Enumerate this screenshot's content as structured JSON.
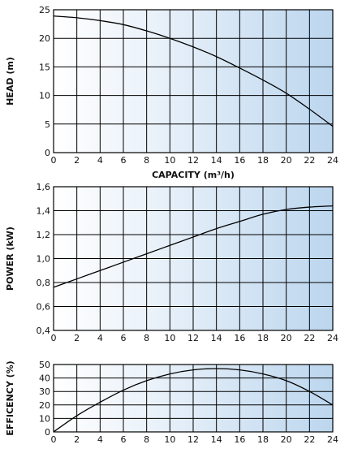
{
  "chart_data": [
    {
      "type": "line",
      "title": "",
      "xlabel": "CAPACITY (m³/h)",
      "ylabel": "HEAD (m)",
      "xlim": [
        0,
        24
      ],
      "ylim": [
        0,
        25
      ],
      "x_ticks": [
        "0",
        "2",
        "4",
        "6",
        "8",
        "10",
        "12",
        "14",
        "16",
        "18",
        "20",
        "22",
        "24"
      ],
      "y_ticks": [
        "0",
        "5",
        "10",
        "15",
        "20",
        "25"
      ],
      "grid": true,
      "series": [
        {
          "x": [
            0,
            2,
            4,
            6,
            8,
            10,
            12,
            14,
            16,
            18,
            20,
            22,
            24
          ],
          "y": [
            23.9,
            23.6,
            23.1,
            22.4,
            21.3,
            20.0,
            18.5,
            16.8,
            14.8,
            12.7,
            10.4,
            7.6,
            4.6
          ]
        }
      ]
    },
    {
      "type": "line",
      "title": "",
      "xlabel": "",
      "ylabel": "POWER (kW)",
      "xlim": [
        0,
        24
      ],
      "ylim": [
        0.4,
        1.6
      ],
      "x_ticks": [
        "0",
        "2",
        "4",
        "6",
        "8",
        "10",
        "12",
        "14",
        "16",
        "18",
        "20",
        "22",
        "24"
      ],
      "y_ticks": [
        "0,4",
        "0,6",
        "0,8",
        "1,0",
        "1,2",
        "1,4",
        "1,6"
      ],
      "grid": true,
      "series": [
        {
          "x": [
            0,
            2,
            4,
            6,
            8,
            10,
            12,
            14,
            16,
            18,
            20,
            22,
            24
          ],
          "y": [
            0.76,
            0.83,
            0.9,
            0.97,
            1.04,
            1.11,
            1.18,
            1.25,
            1.31,
            1.37,
            1.41,
            1.43,
            1.44
          ]
        }
      ]
    },
    {
      "type": "line",
      "title": "",
      "xlabel": "",
      "ylabel": "EFFICENCY (%)",
      "xlim": [
        0,
        24
      ],
      "ylim": [
        0,
        50
      ],
      "x_ticks": [
        "0",
        "2",
        "4",
        "6",
        "8",
        "10",
        "12",
        "14",
        "16",
        "18",
        "20",
        "22",
        "24"
      ],
      "y_ticks": [
        "0",
        "10",
        "20",
        "30",
        "40",
        "50"
      ],
      "grid": true,
      "series": [
        {
          "x": [
            0,
            2,
            4,
            6,
            8,
            10,
            12,
            14,
            16,
            18,
            20,
            22,
            24
          ],
          "y": [
            0,
            12,
            22,
            31,
            38,
            43,
            46,
            47,
            46,
            43,
            38,
            30,
            20
          ]
        }
      ]
    }
  ],
  "colors": {
    "plot_background": "#dbe9f5",
    "plot_background_edge": "#a9c9e6",
    "line": "#000000",
    "grid": "#000000"
  }
}
